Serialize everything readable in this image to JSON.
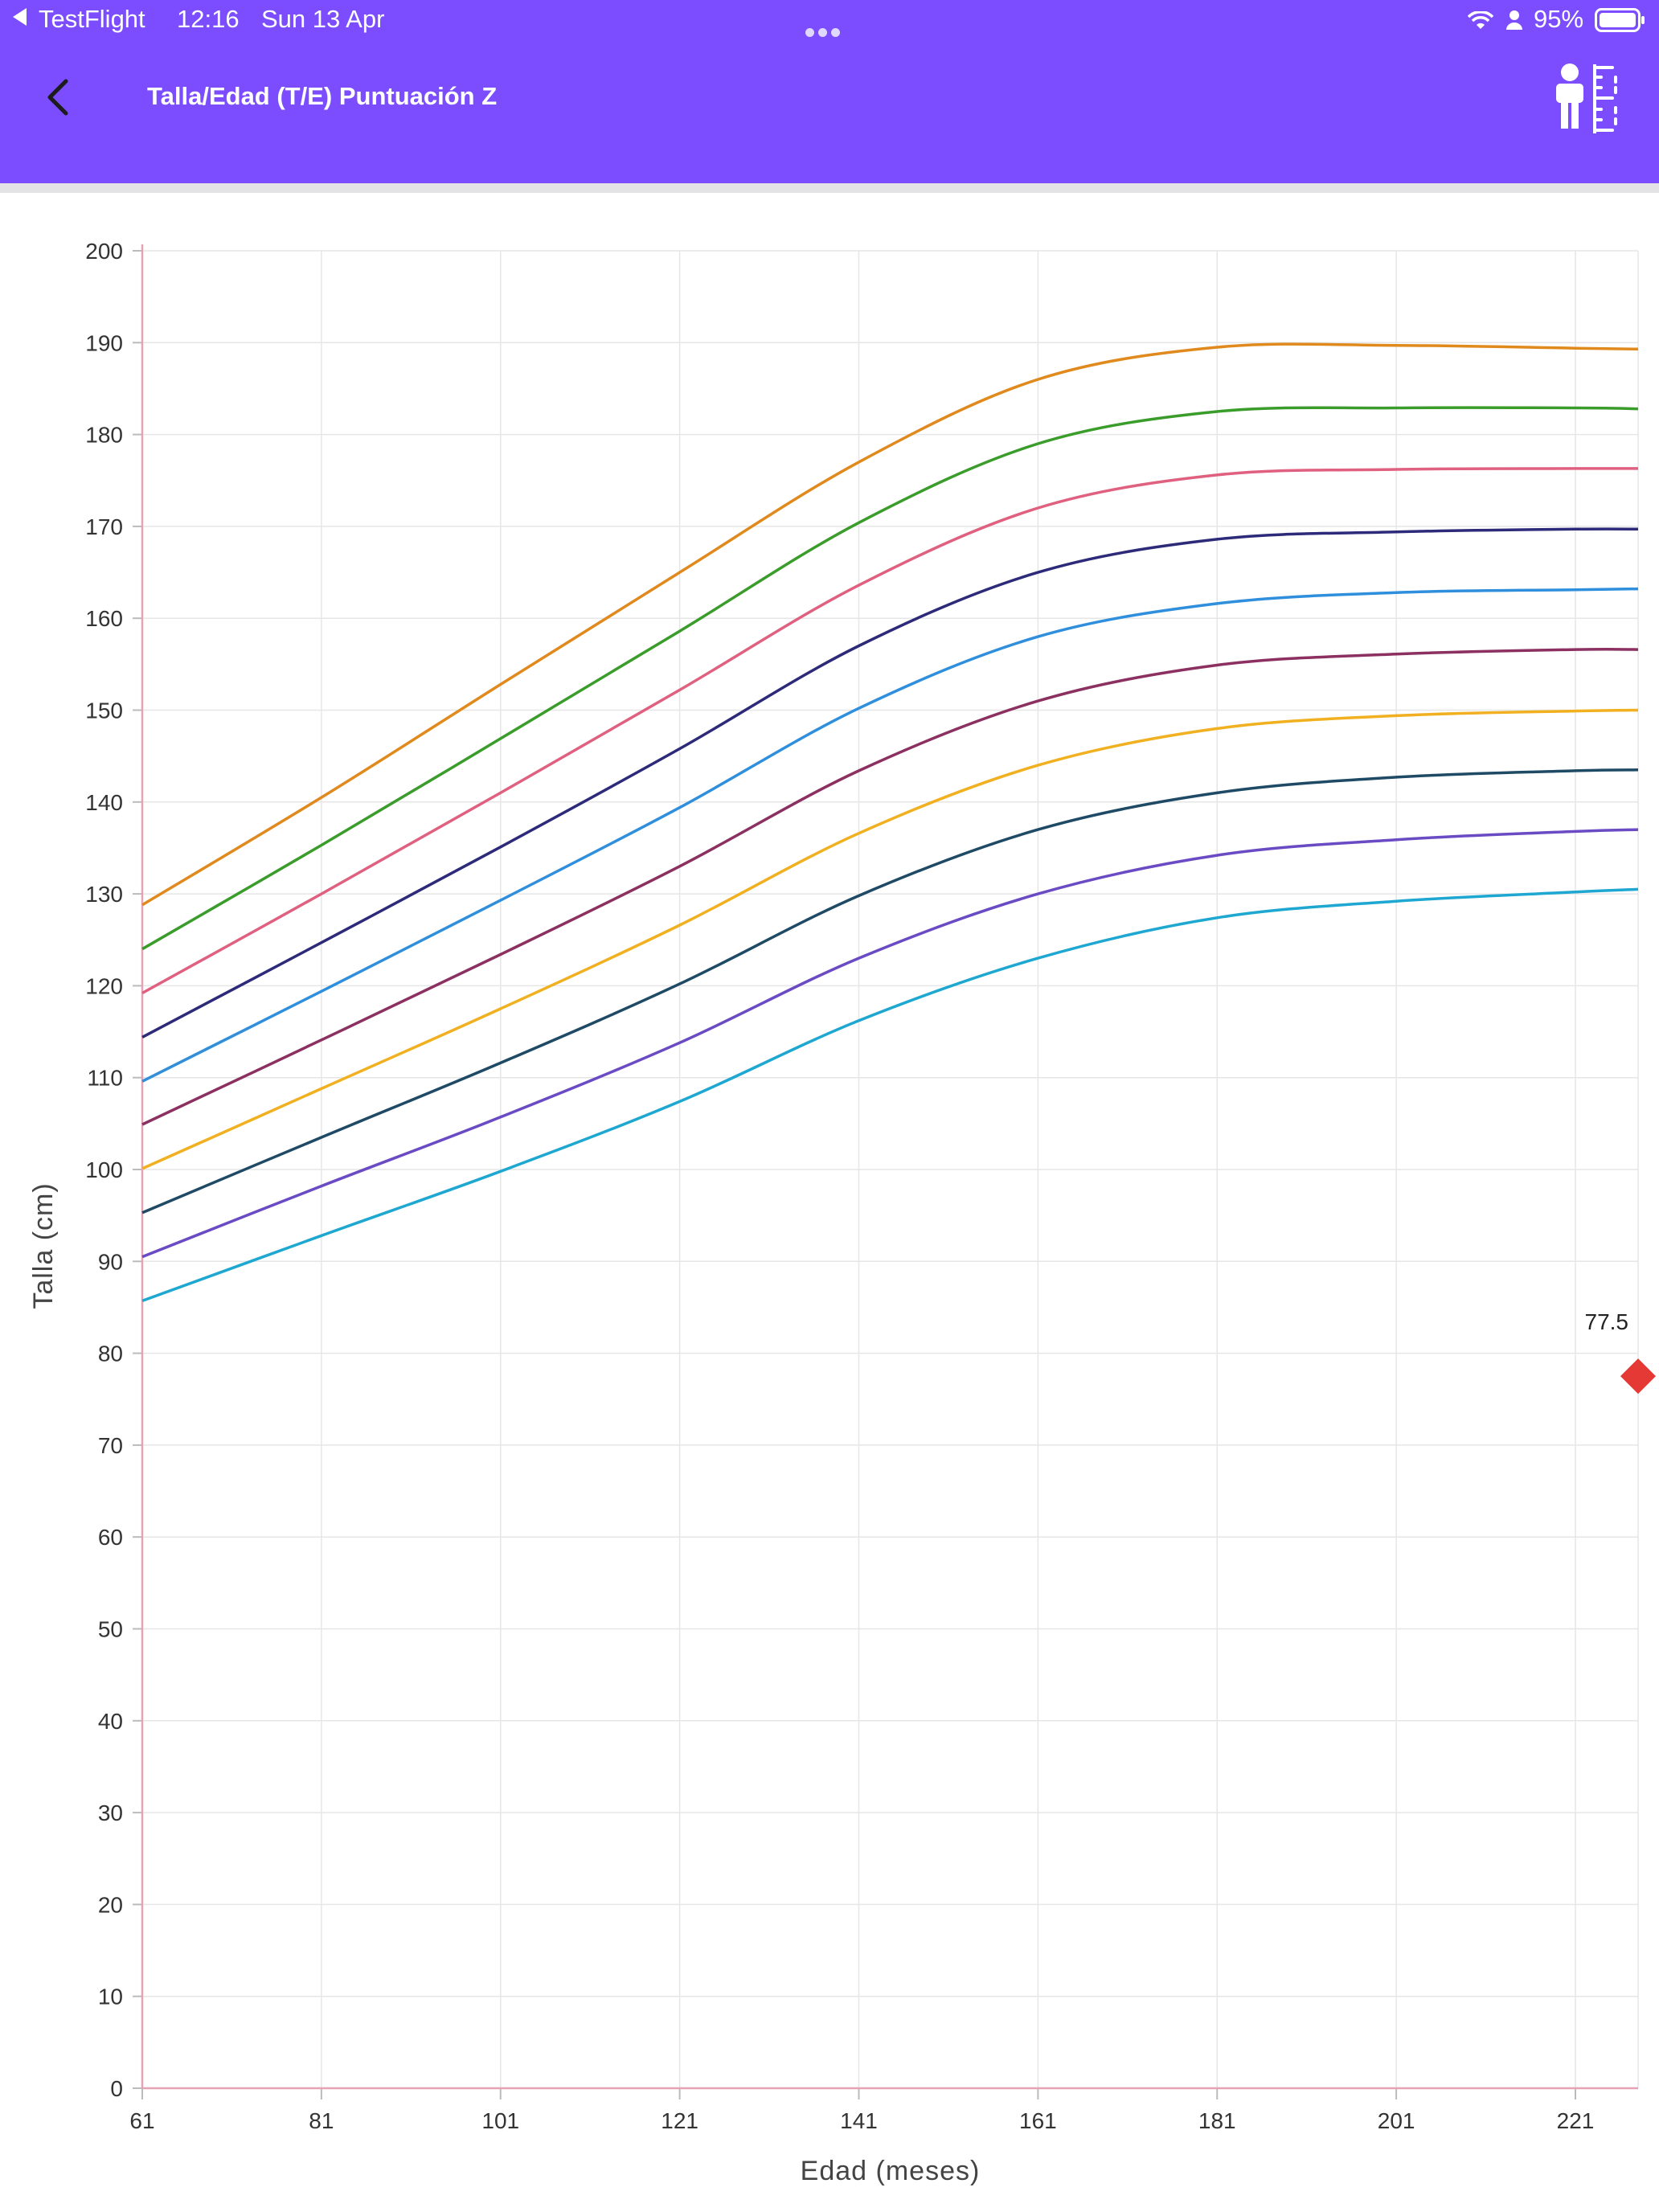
{
  "status_bar": {
    "back_app": "TestFlight",
    "time": "12:16",
    "date": "Sun 13 Apr",
    "battery": "95%"
  },
  "header": {
    "title": "Talla/Edad (T/E) Puntuación Z",
    "back_icon": "chevron-left-icon",
    "action_icon": "child-measure-icon",
    "color": "#7c4dff"
  },
  "chart_data": {
    "type": "line",
    "xlabel": "Edad (meses)",
    "ylabel": "Talla (cm)",
    "xlim": [
      61,
      228
    ],
    "ylim": [
      0,
      200
    ],
    "x_ticks": [
      61,
      81,
      101,
      121,
      141,
      161,
      181,
      201,
      221
    ],
    "y_ticks": [
      0,
      10,
      20,
      30,
      40,
      50,
      60,
      70,
      80,
      90,
      100,
      110,
      120,
      130,
      140,
      150,
      160,
      170,
      180,
      190,
      200
    ],
    "grid": true,
    "x": [
      61,
      81,
      101,
      121,
      141,
      161,
      181,
      201,
      221,
      228
    ],
    "series": [
      {
        "color": "#e08a1e",
        "values": [
          128.8,
          140.5,
          152.8,
          165.0,
          177.0,
          186.0,
          189.5,
          189.7,
          189.4,
          189.3
        ]
      },
      {
        "color": "#3a9c2a",
        "values": [
          124.0,
          135.3,
          146.9,
          158.6,
          170.4,
          179.0,
          182.5,
          182.9,
          182.9,
          182.8
        ]
      },
      {
        "color": "#e06080",
        "values": [
          119.2,
          130.0,
          141.0,
          152.2,
          163.6,
          172.0,
          175.6,
          176.2,
          176.3,
          176.3
        ]
      },
      {
        "color": "#2d2a7a",
        "values": [
          114.4,
          124.7,
          135.1,
          145.8,
          157.0,
          165.0,
          168.6,
          169.4,
          169.7,
          169.7
        ]
      },
      {
        "color": "#2f8fdc",
        "values": [
          109.6,
          119.4,
          129.3,
          139.4,
          150.2,
          158.0,
          161.6,
          162.8,
          163.1,
          163.2
        ]
      },
      {
        "color": "#8b3060",
        "values": [
          104.9,
          114.1,
          123.4,
          133.0,
          143.4,
          151.0,
          154.9,
          156.1,
          156.6,
          156.6
        ]
      },
      {
        "color": "#f0b020",
        "values": [
          100.1,
          108.8,
          117.5,
          126.6,
          136.6,
          144.0,
          148.0,
          149.4,
          149.9,
          150.0
        ]
      },
      {
        "color": "#1f4a66",
        "values": [
          95.3,
          103.5,
          111.6,
          120.2,
          129.8,
          137.0,
          141.0,
          142.7,
          143.4,
          143.5
        ]
      },
      {
        "color": "#6a4bc4",
        "values": [
          90.5,
          98.2,
          105.7,
          113.8,
          123.0,
          130.0,
          134.2,
          135.9,
          136.8,
          137.0
        ]
      },
      {
        "color": "#1ea7d0",
        "values": [
          85.7,
          92.8,
          99.8,
          107.4,
          116.2,
          123.0,
          127.4,
          129.2,
          130.2,
          130.5
        ]
      }
    ],
    "patient_point": {
      "x": 228,
      "y": 77.5,
      "label": "77.5",
      "color": "#e53935",
      "marker": "diamond"
    }
  }
}
